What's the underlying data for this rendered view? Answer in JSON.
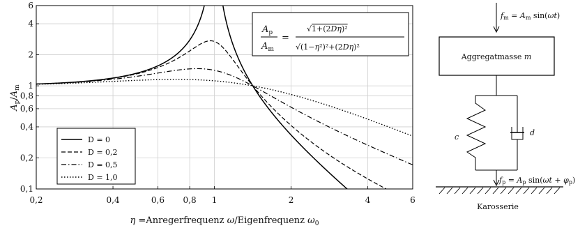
{
  "chart_data": {
    "type": "line",
    "x_scale": "log",
    "y_scale": "log",
    "xlim": [
      0.2,
      6
    ],
    "ylim": [
      0.1,
      6
    ],
    "x_ticks": [
      0.2,
      0.4,
      0.6,
      0.8,
      1,
      2,
      4,
      6
    ],
    "x_tick_labels": [
      "0,2",
      "0,4",
      "0,6",
      "0,8",
      "1",
      "2",
      "4",
      "6"
    ],
    "y_ticks": [
      0.1,
      0.2,
      0.4,
      0.6,
      0.8,
      1,
      2,
      4,
      6
    ],
    "y_tick_labels": [
      "0,1",
      "0,2",
      "0,4",
      "0,6",
      "0,8",
      "1",
      "2",
      "4",
      "6"
    ],
    "grid": true,
    "legend_position": "bottom-left",
    "xlabel": "η =Anregerfrequenz ω/Eigenfrequenz ω0",
    "ylabel": "Ap/Am",
    "formula": "Ap/Am = √(1+(2Dη)²) / √((1−η²)²+(2Dη)²)",
    "series": [
      {
        "name": "D = 0",
        "D": 0,
        "dash": "solid",
        "points": [
          [
            0.2,
            1.04
          ],
          [
            0.4,
            1.19
          ],
          [
            0.6,
            1.56
          ],
          [
            0.8,
            2.78
          ],
          [
            0.9,
            5.26
          ],
          [
            1.1,
            4.76
          ],
          [
            1.2,
            2.27
          ],
          [
            1.41,
            1.0
          ],
          [
            2,
            0.333
          ],
          [
            3,
            0.125
          ],
          [
            3.3,
            0.1
          ]
        ]
      },
      {
        "name": "D = 0,2",
        "D": 0.2,
        "dash": "dashed",
        "points": [
          [
            0.2,
            1.04
          ],
          [
            0.4,
            1.18
          ],
          [
            0.6,
            1.49
          ],
          [
            0.8,
            2.18
          ],
          [
            0.95,
            2.72
          ],
          [
            1,
            2.69
          ],
          [
            1.2,
            1.77
          ],
          [
            1.41,
            1.0
          ],
          [
            2,
            0.44
          ],
          [
            3,
            0.23
          ],
          [
            4,
            0.16
          ],
          [
            5,
            0.124
          ],
          [
            6,
            0.1
          ]
        ]
      },
      {
        "name": "D = 0,5",
        "D": 0.5,
        "dash": "dashdot",
        "points": [
          [
            0.2,
            1.04
          ],
          [
            0.4,
            1.16
          ],
          [
            0.6,
            1.34
          ],
          [
            0.8,
            1.52
          ],
          [
            1,
            1.41
          ],
          [
            1.41,
            1.0
          ],
          [
            2,
            0.63
          ],
          [
            3,
            0.38
          ],
          [
            4,
            0.28
          ],
          [
            6,
            0.18
          ]
        ]
      },
      {
        "name": "D = 1,0",
        "D": 1.0,
        "dash": "dotted",
        "points": [
          [
            0.2,
            1.02
          ],
          [
            0.4,
            1.06
          ],
          [
            0.6,
            1.1
          ],
          [
            0.8,
            1.12
          ],
          [
            1,
            1.12
          ],
          [
            1.41,
            1.0
          ],
          [
            2,
            0.83
          ],
          [
            3,
            0.64
          ],
          [
            4,
            0.53
          ],
          [
            6,
            0.37
          ]
        ]
      }
    ]
  },
  "diagram": {
    "force_top": "fm = Am sin(ωt)",
    "mass_label": "Aggregatmasse m",
    "spring_label": "c",
    "damper_label": "d",
    "force_bottom": "fp = Ap sin(ωt + φp)",
    "ground_label": "Karosserie"
  }
}
